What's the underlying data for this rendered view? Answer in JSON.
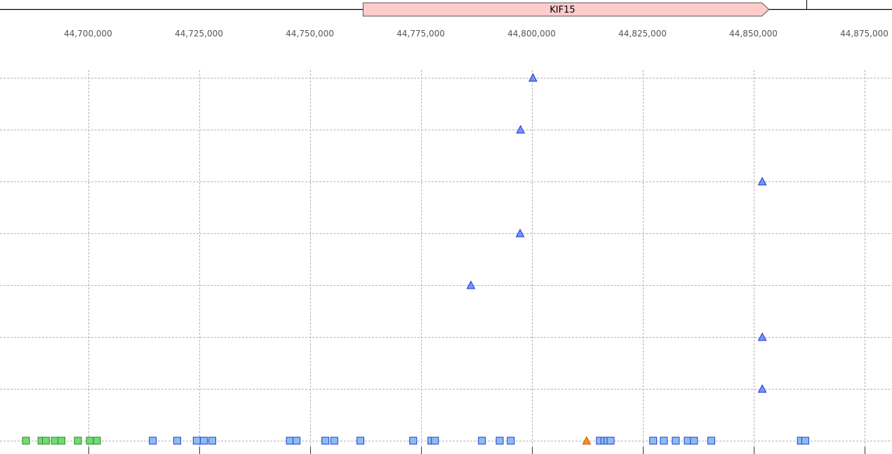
{
  "gene_track": {
    "genes": [
      {
        "name": "KIF15",
        "start": 44762000,
        "end": 44853500,
        "strand": "+",
        "color": "#ffcccc"
      }
    ],
    "boundary_marks": [
      44862000
    ]
  },
  "chart_data": {
    "type": "scatter",
    "title": "",
    "xlabel": "",
    "ylabel": "",
    "xlim": [
      44680000,
      44880000
    ],
    "x_ticks": [
      44700000,
      44725000,
      44750000,
      44775000,
      44800000,
      44825000,
      44850000,
      44875000
    ],
    "x_tick_labels": [
      "44,700,000",
      "44,725,000",
      "44,750,000",
      "44,775,000",
      "44,800,000",
      "44,825,000",
      "44,850,000",
      "44,875,000"
    ],
    "ylim": [
      0,
      8
    ],
    "y_rows": [
      1,
      2,
      3,
      4,
      5,
      6,
      7,
      8
    ],
    "grid": true,
    "legend": "none",
    "series": [
      {
        "marker": "triangle",
        "color": "#6f97ff",
        "stroke": "#2233cc",
        "points": [
          {
            "x": 44800300,
            "y": 8
          },
          {
            "x": 44797500,
            "y": 7
          },
          {
            "x": 44852000,
            "y": 6
          },
          {
            "x": 44797400,
            "y": 5
          },
          {
            "x": 44786300,
            "y": 4
          },
          {
            "x": 44852000,
            "y": 3
          },
          {
            "x": 44852000,
            "y": 2
          }
        ]
      },
      {
        "marker": "triangle",
        "color": "#ff8c1a",
        "stroke": "#cc5500",
        "points": [
          {
            "x": 44812400,
            "y": 1
          }
        ]
      },
      {
        "marker": "square",
        "color": "#6fdc6f",
        "stroke": "#2a8a2a",
        "points": [
          {
            "x": 44686000,
            "y": 1
          },
          {
            "x": 44689500,
            "y": 1
          },
          {
            "x": 44690500,
            "y": 1
          },
          {
            "x": 44692500,
            "y": 1
          },
          {
            "x": 44694000,
            "y": 1
          },
          {
            "x": 44697700,
            "y": 1
          },
          {
            "x": 44700400,
            "y": 1
          },
          {
            "x": 44702000,
            "y": 1
          }
        ]
      },
      {
        "marker": "square",
        "color": "#8cbcf0",
        "stroke": "#2040cc",
        "points": [
          {
            "x": 44714600,
            "y": 1
          },
          {
            "x": 44720100,
            "y": 1
          },
          {
            "x": 44724500,
            "y": 1
          },
          {
            "x": 44726100,
            "y": 1
          },
          {
            "x": 44728000,
            "y": 1
          },
          {
            "x": 44745500,
            "y": 1
          },
          {
            "x": 44747000,
            "y": 1
          },
          {
            "x": 44753500,
            "y": 1
          },
          {
            "x": 44755500,
            "y": 1
          },
          {
            "x": 44761400,
            "y": 1
          },
          {
            "x": 44773300,
            "y": 1
          },
          {
            "x": 44777400,
            "y": 1
          },
          {
            "x": 44778200,
            "y": 1
          },
          {
            "x": 44788800,
            "y": 1
          },
          {
            "x": 44792800,
            "y": 1
          },
          {
            "x": 44795300,
            "y": 1
          },
          {
            "x": 44815400,
            "y": 1
          },
          {
            "x": 44816400,
            "y": 1
          },
          {
            "x": 44817100,
            "y": 1
          },
          {
            "x": 44817800,
            "y": 1
          },
          {
            "x": 44827400,
            "y": 1
          },
          {
            "x": 44829800,
            "y": 1
          },
          {
            "x": 44832500,
            "y": 1
          },
          {
            "x": 44835200,
            "y": 1
          },
          {
            "x": 44836600,
            "y": 1
          },
          {
            "x": 44840500,
            "y": 1
          },
          {
            "x": 44860700,
            "y": 1
          },
          {
            "x": 44861700,
            "y": 1
          }
        ]
      }
    ]
  }
}
